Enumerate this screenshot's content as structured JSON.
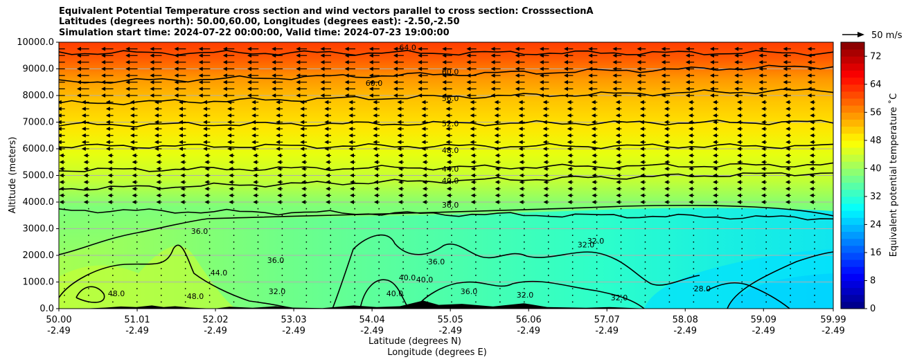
{
  "chart_data": {
    "type": "heatmap",
    "title": [
      "Equivalent Potential Temperature cross section and wind vectors parallel to cross section: CrosssectionA",
      "Latitudes (degrees north): 50.00,60.00, Longitudes (degrees east): -2.50,-2.50",
      "Simulation start time: 2024-07-22 00:00:00, Valid time: 2024-07-23 19:00:00"
    ],
    "xlabel": "Latitude (degrees N)",
    "xlabel2": "Longitude (degrees E)",
    "ylabel": "Altitude (meters)",
    "xlim": [
      50.0,
      59.99
    ],
    "ylim": [
      0,
      10000
    ],
    "x_ticks": [
      50.0,
      51.01,
      52.02,
      53.03,
      54.04,
      55.05,
      56.06,
      57.07,
      58.08,
      59.09,
      59.99
    ],
    "x_tick_labels": [
      "50.00",
      "51.01",
      "52.02",
      "53.03",
      "54.04",
      "55.05",
      "56.06",
      "57.07",
      "58.08",
      "59.09",
      "59.99"
    ],
    "x_tick_labels2": [
      "-2.49",
      "-2.49",
      "-2.49",
      "-2.49",
      "-2.49",
      "-2.49",
      "-2.49",
      "-2.49",
      "-2.49",
      "-2.49",
      "-2.49"
    ],
    "y_ticks": [
      0,
      1000,
      2000,
      3000,
      4000,
      5000,
      6000,
      7000,
      8000,
      9000,
      10000
    ],
    "y_tick_labels": [
      "0.0",
      "1000.0",
      "2000.0",
      "3000.0",
      "4000.0",
      "5000.0",
      "6000.0",
      "7000.0",
      "8000.0",
      "9000.0",
      "10000.0"
    ],
    "grid": "horizontal",
    "colorbar": {
      "label": "Equivalent potential temperature ˚C",
      "range": [
        0,
        76
      ],
      "ticks": [
        0,
        8,
        16,
        24,
        32,
        40,
        48,
        56,
        64,
        72
      ],
      "tick_labels": [
        "0",
        "8",
        "16",
        "24",
        "32",
        "40",
        "48",
        "56",
        "64",
        "72"
      ],
      "colormap": "jet"
    },
    "wind_key": {
      "value": 50,
      "label": "50 m/s"
    },
    "contours": [
      {
        "level": 28,
        "label": "28.0",
        "label_x": 58.3,
        "label_y": 750
      },
      {
        "level": 32,
        "label": "32.0",
        "label_x": 56.8,
        "label_y": 2400
      },
      {
        "level": 36,
        "label": "36.0",
        "label_x": 55.05,
        "label_y": 3900
      },
      {
        "level": 40,
        "label": "40.0",
        "label_x": 55.05,
        "label_y": 4800
      },
      {
        "level": 44,
        "label": "44.0",
        "label_x": 55.05,
        "label_y": 5250
      },
      {
        "level": 48,
        "label": "48.0",
        "label_x": 55.05,
        "label_y": 5950
      },
      {
        "level": 52,
        "label": "52.0",
        "label_x": 55.05,
        "label_y": 6950
      },
      {
        "level": 56,
        "label": "56.0",
        "label_x": 55.05,
        "label_y": 7900
      },
      {
        "level": 60,
        "label": "60.0",
        "label_x": 55.05,
        "label_y": 8900
      },
      {
        "level": 64,
        "label": "64.0",
        "label_x": 54.5,
        "label_y": 9800
      }
    ],
    "contour_labels_extra": [
      "36.0",
      "36.0",
      "44.0",
      "32.0",
      "40.0",
      "40.0",
      "40.0",
      "36.0",
      "32.0",
      "32.0",
      "48.0",
      "48.0",
      "60.0",
      "36.0",
      "32.0"
    ],
    "bands": [
      {
        "bottom": 9000,
        "value": 68
      },
      {
        "bottom": 8000,
        "value": 62
      },
      {
        "bottom": 7000,
        "value": 56
      },
      {
        "bottom": 6000,
        "value": 51
      },
      {
        "bottom": 5000,
        "value": 46
      },
      {
        "bottom": 4000,
        "value": 41
      },
      {
        "bottom": 0,
        "value": 35
      }
    ],
    "wind_vectors": {
      "direction": "toward decreasing latitude",
      "strongest_altitude_range": [
        8000,
        10000
      ],
      "weak_below": 4000
    }
  }
}
